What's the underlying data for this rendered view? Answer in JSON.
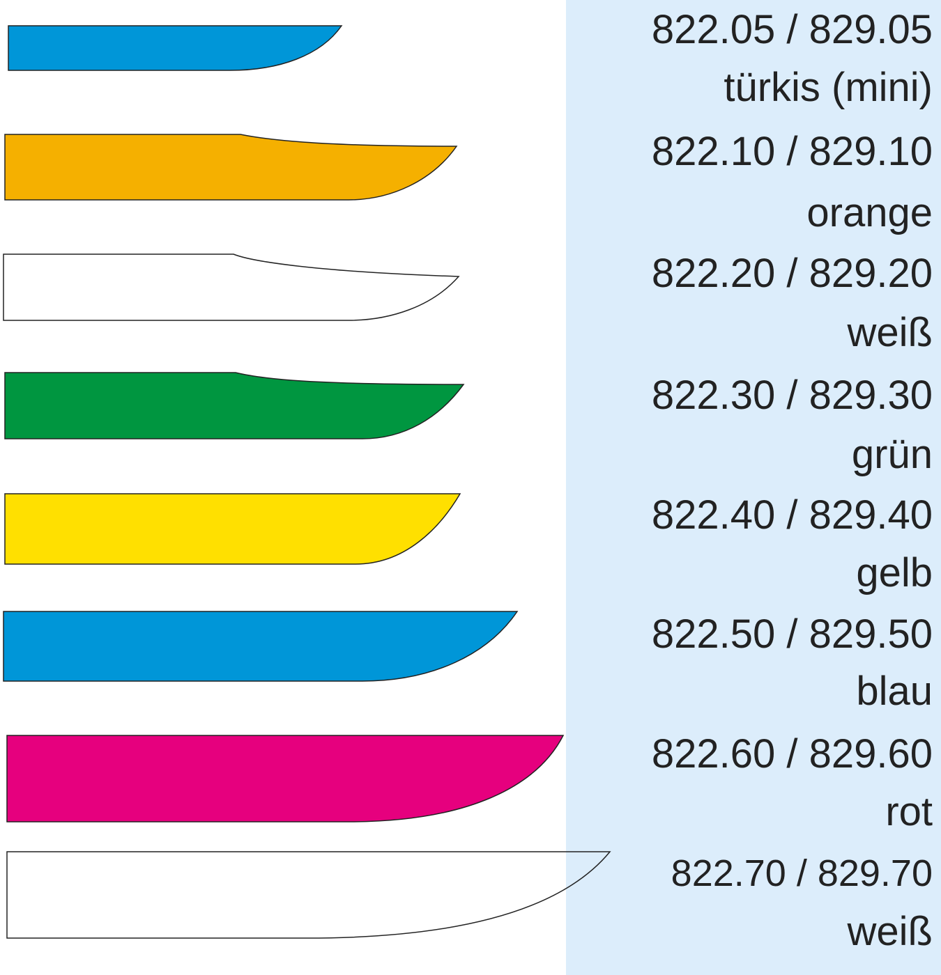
{
  "items": [
    {
      "code": "822.05 / 829.05",
      "name": "türkis (mini)"
    },
    {
      "code": "822.10 / 829.10",
      "name": "orange"
    },
    {
      "code": "822.20 / 829.20",
      "name": "weiß"
    },
    {
      "code": "822.30 / 829.30",
      "name": "grün"
    },
    {
      "code": "822.40 / 829.40",
      "name": "gelb"
    },
    {
      "code": "822.50 / 829.50",
      "name": "blau"
    },
    {
      "code": "822.60 / 829.60",
      "name": "rot"
    },
    {
      "code": "822.70 / 829.70",
      "name": "weiß"
    }
  ]
}
